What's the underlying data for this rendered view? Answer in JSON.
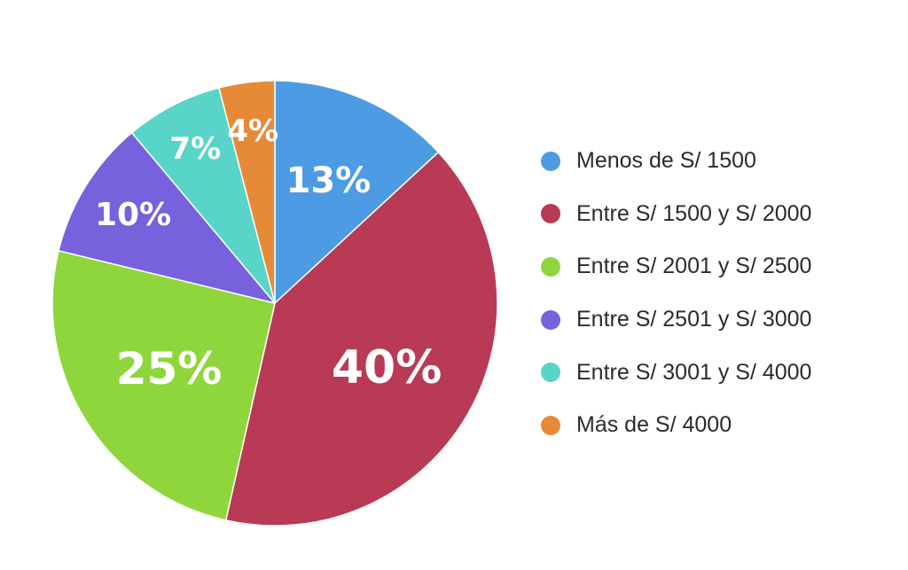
{
  "chart_data": {
    "type": "pie",
    "start_angle_deg": 0,
    "direction": "clockwise",
    "slices": [
      {
        "label": "Menos de S/ 1500",
        "value": 13,
        "display": "13%",
        "color": "#4d9be3"
      },
      {
        "label": "Entre S/ 1500 y S/ 2000",
        "value": 40,
        "display": "40%",
        "color": "#b83a54"
      },
      {
        "label": "Entre S/ 2001 y S/ 2500",
        "value": 25,
        "display": "25%",
        "color": "#8ed63c"
      },
      {
        "label": "Entre S/ 2501 y S/ 3000",
        "value": 10,
        "display": "10%",
        "color": "#7861dc"
      },
      {
        "label": "Entre S/ 3001 y S/ 4000",
        "value": 7,
        "display": "7%",
        "color": "#58d4c8"
      },
      {
        "label": "Más de S/ 4000",
        "value": 4,
        "display": "4%",
        "color": "#e68a38"
      }
    ],
    "legend_position": "right"
  }
}
